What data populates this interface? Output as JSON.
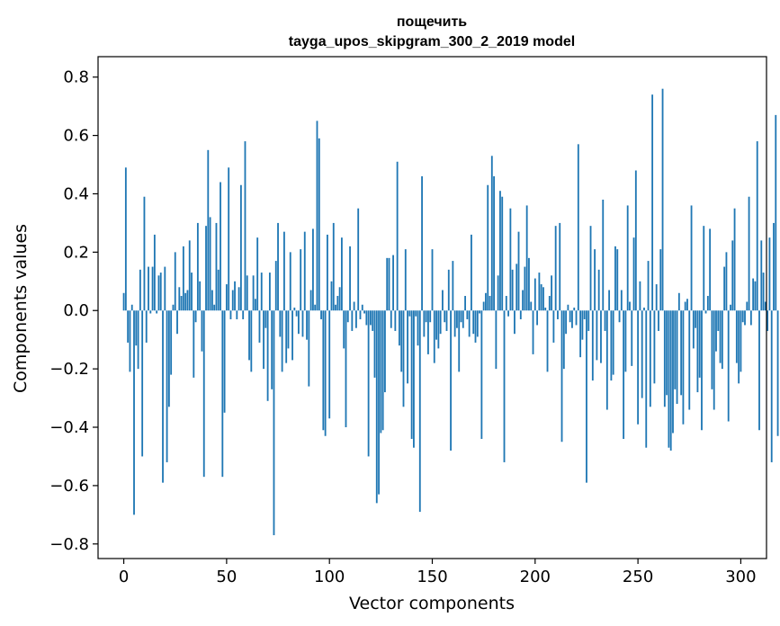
{
  "chart_data": {
    "type": "bar",
    "title_line1": "пощечить",
    "title_line2": "tayga_upos_skipgram_300_2_2019 model",
    "xlabel": "Vector components",
    "ylabel": "Components values",
    "xlim": [
      -12.5,
      312.5
    ],
    "ylim": [
      -0.85,
      0.87
    ],
    "xticks": [
      0,
      50,
      100,
      150,
      200,
      250,
      300
    ],
    "xtick_labels": [
      "0",
      "50",
      "100",
      "150",
      "200",
      "250",
      "300"
    ],
    "yticks": [
      -0.8,
      -0.6,
      -0.4,
      -0.2,
      0.0,
      0.2,
      0.4,
      0.6,
      0.8
    ],
    "ytick_labels": [
      "−0.8",
      "−0.6",
      "−0.4",
      "−0.2",
      "0.0",
      "0.2",
      "0.4",
      "0.6",
      "0.8"
    ],
    "bar_color": "#1f77b4",
    "values": [
      0.06,
      0.49,
      -0.11,
      -0.21,
      0.02,
      -0.7,
      -0.12,
      -0.2,
      0.14,
      -0.5,
      0.39,
      -0.11,
      0.15,
      -0.01,
      0.15,
      0.26,
      -0.01,
      0.12,
      0.13,
      -0.59,
      0.15,
      -0.52,
      -0.33,
      -0.22,
      0.02,
      0.2,
      -0.08,
      0.08,
      0.05,
      0.22,
      0.06,
      0.07,
      0.24,
      0.13,
      -0.23,
      -0.04,
      0.3,
      0.1,
      -0.14,
      -0.57,
      0.29,
      0.55,
      0.32,
      0.07,
      0.02,
      0.3,
      0.14,
      0.44,
      -0.57,
      -0.35,
      0.09,
      0.49,
      -0.03,
      0.07,
      0.1,
      -0.03,
      0.08,
      0.43,
      -0.03,
      0.58,
      0.12,
      -0.17,
      -0.21,
      0.12,
      0.04,
      0.25,
      -0.11,
      0.13,
      -0.2,
      -0.06,
      -0.31,
      0.13,
      -0.27,
      -0.77,
      0.17,
      0.3,
      -0.09,
      -0.21,
      0.27,
      -0.18,
      -0.13,
      0.2,
      -0.17,
      0.01,
      -0.02,
      -0.08,
      0.21,
      -0.09,
      0.27,
      -0.1,
      -0.26,
      0.07,
      0.28,
      0.02,
      0.65,
      0.59,
      -0.03,
      -0.41,
      -0.43,
      0.26,
      -0.37,
      0.1,
      0.3,
      0.02,
      0.05,
      0.08,
      0.25,
      -0.13,
      -0.4,
      -0.04,
      0.22,
      -0.07,
      0.03,
      -0.06,
      0.35,
      -0.03,
      0.02,
      -0.01,
      -0.05,
      -0.5,
      -0.05,
      -0.07,
      -0.23,
      -0.66,
      -0.63,
      -0.42,
      -0.41,
      -0.28,
      0.18,
      0.18,
      -0.06,
      0.19,
      -0.07,
      0.51,
      -0.12,
      -0.21,
      -0.33,
      0.21,
      -0.25,
      -0.02,
      -0.44,
      -0.47,
      -0.02,
      -0.12,
      -0.69,
      0.46,
      -0.09,
      -0.04,
      -0.15,
      -0.04,
      0.21,
      -0.18,
      -0.1,
      -0.13,
      -0.08,
      0.07,
      -0.04,
      -0.07,
      0.14,
      -0.48,
      0.17,
      -0.09,
      -0.06,
      -0.21,
      -0.04,
      -0.06,
      0.05,
      -0.03,
      -0.09,
      0.26,
      -0.08,
      -0.11,
      -0.09,
      -0.01,
      -0.44,
      0.03,
      0.06,
      0.43,
      0.05,
      0.53,
      0.46,
      -0.2,
      0.12,
      0.41,
      0.39,
      -0.52,
      0.05,
      -0.02,
      0.35,
      0.14,
      -0.08,
      0.16,
      0.27,
      -0.03,
      0.07,
      0.15,
      0.36,
      0.18,
      0.03,
      -0.15,
      0.11,
      -0.05,
      0.13,
      0.09,
      0.08,
      0.01,
      -0.21,
      0.05,
      0.12,
      -0.11,
      0.29,
      -0.03,
      0.3,
      -0.45,
      -0.2,
      -0.08,
      0.02,
      -0.04,
      -0.06,
      0.01,
      -0.05,
      0.57,
      -0.16,
      -0.1,
      -0.03,
      -0.59,
      -0.07,
      0.29,
      -0.24,
      0.21,
      -0.17,
      0.14,
      -0.18,
      0.38,
      -0.07,
      -0.34,
      0.07,
      -0.24,
      -0.22,
      0.22,
      0.21,
      -0.04,
      0.07,
      -0.44,
      -0.21,
      0.36,
      0.03,
      -0.19,
      0.25,
      0.48,
      -0.39,
      0.1,
      -0.3,
      0.01,
      -0.47,
      0.17,
      -0.33,
      0.74,
      -0.25,
      0.09,
      -0.07,
      0.21,
      0.76,
      -0.33,
      -0.29,
      -0.47,
      -0.48,
      -0.42,
      -0.27,
      -0.32,
      0.06,
      -0.29,
      -0.39,
      0.03,
      0.04,
      -0.34,
      0.36,
      -0.13,
      -0.06,
      -0.28,
      -0.23,
      -0.41,
      0.29,
      -0.01,
      0.05,
      0.28,
      -0.27,
      -0.34,
      -0.14,
      -0.07,
      -0.18,
      -0.2,
      0.15,
      0.2,
      -0.38,
      0.02,
      0.24,
      0.35,
      -0.18,
      -0.25,
      -0.21,
      -0.04,
      -0.05,
      0.03,
      0.39,
      -0.05,
      0.11,
      0.1,
      0.58,
      -0.41,
      0.24,
      0.13,
      0.03,
      -0.07,
      0.25,
      -0.52,
      0.3,
      0.67,
      -0.43
    ]
  }
}
